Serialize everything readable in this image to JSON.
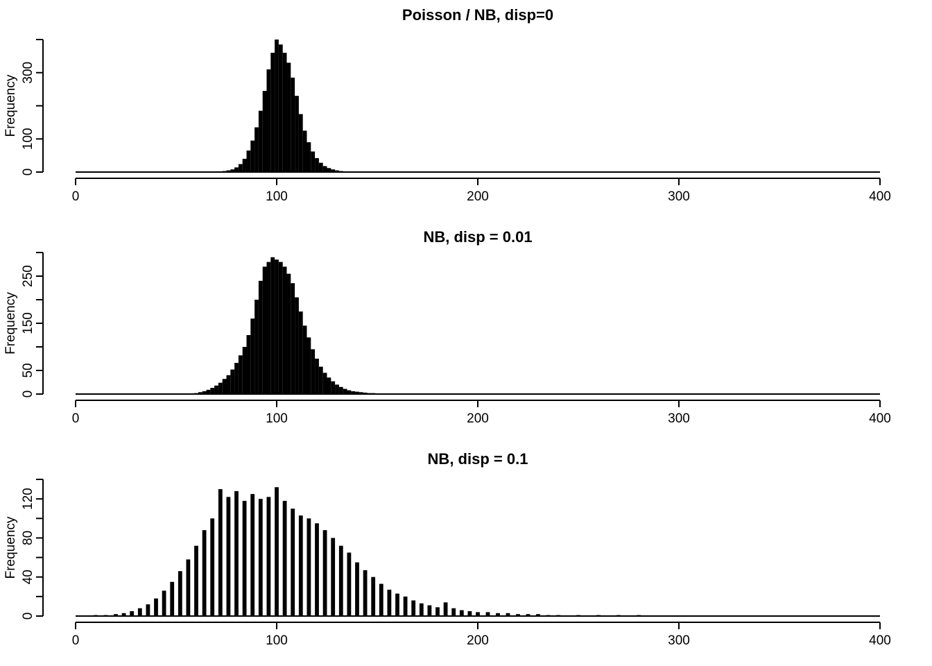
{
  "chart_data": [
    {
      "type": "bar",
      "title": "Poisson / NB, disp=0",
      "xlabel": "",
      "ylabel": "Frequency",
      "xlim": [
        0,
        400
      ],
      "ylim": [
        0,
        400
      ],
      "xticks": [
        0,
        100,
        200,
        300,
        400
      ],
      "yticks": [
        0,
        100,
        300
      ],
      "ytick_marks": [
        0,
        100,
        200,
        300,
        400
      ],
      "grid": false,
      "x": [
        72,
        74,
        76,
        78,
        80,
        82,
        84,
        86,
        88,
        90,
        92,
        94,
        96,
        98,
        100,
        102,
        104,
        106,
        108,
        110,
        112,
        114,
        116,
        118,
        120,
        122,
        124,
        126,
        128,
        130,
        132,
        134
      ],
      "values": [
        2,
        3,
        5,
        8,
        14,
        24,
        40,
        65,
        95,
        135,
        185,
        245,
        310,
        360,
        400,
        385,
        360,
        330,
        285,
        230,
        175,
        125,
        90,
        62,
        42,
        28,
        18,
        12,
        8,
        5,
        3,
        2
      ]
    },
    {
      "type": "bar",
      "title": "NB, disp = 0.01",
      "xlabel": "",
      "ylabel": "Frequency",
      "xlim": [
        0,
        400
      ],
      "ylim": [
        0,
        300
      ],
      "xticks": [
        0,
        100,
        200,
        300,
        400
      ],
      "yticks": [
        0,
        50,
        150,
        250
      ],
      "ytick_marks": [
        0,
        50,
        100,
        150,
        200,
        250,
        300
      ],
      "grid": false,
      "x": [
        50,
        55,
        60,
        62,
        64,
        66,
        68,
        70,
        72,
        74,
        76,
        78,
        80,
        82,
        84,
        86,
        88,
        90,
        92,
        94,
        96,
        98,
        100,
        102,
        104,
        106,
        108,
        110,
        112,
        114,
        116,
        118,
        120,
        122,
        124,
        126,
        128,
        130,
        132,
        134,
        136,
        138,
        140,
        142,
        144,
        146,
        148,
        150,
        155,
        160,
        178
      ],
      "values": [
        1,
        1,
        2,
        4,
        6,
        9,
        13,
        18,
        24,
        32,
        40,
        52,
        66,
        82,
        100,
        125,
        160,
        200,
        240,
        270,
        280,
        290,
        285,
        280,
        270,
        255,
        235,
        205,
        175,
        145,
        120,
        95,
        75,
        58,
        45,
        35,
        27,
        20,
        15,
        11,
        8,
        6,
        5,
        4,
        3,
        2,
        2,
        1,
        1,
        1,
        1
      ]
    },
    {
      "type": "bar",
      "title": "NB, disp = 0.1",
      "xlabel": "",
      "ylabel": "Frequency",
      "xlim": [
        0,
        400
      ],
      "ylim": [
        0,
        140
      ],
      "xticks": [
        0,
        100,
        200,
        300,
        400
      ],
      "yticks": [
        0,
        40,
        80,
        120
      ],
      "ytick_marks": [
        0,
        20,
        40,
        60,
        80,
        100,
        120,
        140
      ],
      "grid": false,
      "x": [
        10,
        15,
        20,
        24,
        28,
        32,
        36,
        40,
        44,
        48,
        52,
        56,
        60,
        64,
        68,
        72,
        76,
        80,
        84,
        88,
        92,
        96,
        100,
        104,
        108,
        112,
        116,
        120,
        124,
        128,
        132,
        136,
        140,
        144,
        148,
        152,
        156,
        160,
        164,
        168,
        172,
        176,
        180,
        184,
        188,
        192,
        196,
        200,
        205,
        210,
        215,
        220,
        225,
        230,
        235,
        240,
        250,
        260,
        270,
        280
      ],
      "values": [
        1,
        1,
        2,
        3,
        5,
        8,
        12,
        18,
        26,
        35,
        46,
        58,
        72,
        88,
        100,
        130,
        122,
        128,
        118,
        125,
        120,
        122,
        132,
        118,
        110,
        103,
        100,
        95,
        88,
        80,
        72,
        65,
        55,
        47,
        40,
        33,
        27,
        23,
        20,
        16,
        13,
        11,
        9,
        14,
        8,
        6,
        5,
        4,
        4,
        3,
        3,
        2,
        2,
        2,
        1,
        1,
        1,
        1,
        1,
        1
      ]
    }
  ]
}
